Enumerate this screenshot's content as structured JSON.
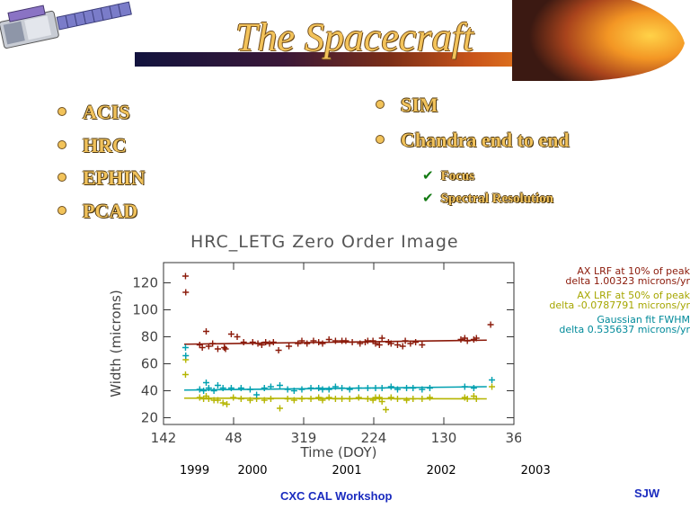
{
  "header": {
    "title": "The Spacecraft"
  },
  "bullets_left": [
    "ACIS",
    "HRC",
    "EPHIN",
    "PCAD"
  ],
  "bullets_right": [
    "SIM",
    "Chandra end to end"
  ],
  "sub_items": [
    "Focus",
    "Spectral Resolution"
  ],
  "footer": {
    "workshop": "CXC CAL Workshop",
    "initials": "SJW"
  },
  "colors": {
    "bullet_text": "#f1c25b",
    "series_10": "#8b1a0a",
    "series_50": "#b5b500",
    "series_gauss": "#00a0b0",
    "footer": "#1a2bbf"
  },
  "chart_data": {
    "type": "scatter",
    "title": "HRC_LETG Zero Order Image",
    "xlabel": "Time (DOY)",
    "ylabel": "Width (microns)",
    "x_tick_labels": [
      "142",
      "48",
      "319",
      "224",
      "130",
      "36"
    ],
    "x_ticks_days": [
      0,
      271,
      542,
      813,
      1084,
      1355
    ],
    "xlim": [
      0,
      1355
    ],
    "year_labels": [
      "1999",
      "2000",
      "2001",
      "2002",
      "2003"
    ],
    "year_label_days": [
      0,
      224,
      589,
      954,
      1319
    ],
    "y_ticks": [
      20,
      40,
      60,
      80,
      100,
      120
    ],
    "ylim": [
      15,
      135
    ],
    "legend": [
      {
        "label": "AX LRF at 10% of peak",
        "fit": "delta 1.00323 microns/yr",
        "color": "#8b1a0a"
      },
      {
        "label": "AX LRF at 50% of peak",
        "fit": "delta -0.0787791 microns/yr",
        "color": "#b5b500"
      },
      {
        "label": "Gaussian fit FWHM",
        "fit": "delta 0.535637 microns/yr",
        "color": "#00a0b0"
      }
    ],
    "series": [
      {
        "name": "AX LRF at 10% of peak",
        "color": "#8b1a0a",
        "fit": [
          [
            80,
            74.5
          ],
          [
            1250,
            77.5
          ]
        ],
        "x": [
          85,
          86,
          140,
          150,
          165,
          175,
          190,
          210,
          235,
          240,
          262,
          285,
          310,
          345,
          365,
          380,
          395,
          410,
          425,
          445,
          485,
          520,
          535,
          555,
          580,
          600,
          615,
          640,
          665,
          690,
          705,
          730,
          760,
          780,
          790,
          810,
          820,
          835,
          845,
          870,
          880,
          905,
          925,
          935,
          955,
          975,
          1000,
          1150,
          1165,
          1175,
          1200,
          1210,
          1265
        ],
        "y": [
          125,
          113,
          74,
          72,
          84,
          73,
          75,
          71,
          72,
          71,
          82,
          80,
          76,
          76,
          75,
          74,
          76,
          75,
          76,
          70,
          73,
          75,
          77,
          75,
          77,
          76,
          75,
          78,
          77,
          77,
          77,
          76,
          75,
          76,
          77,
          77,
          75,
          74,
          79,
          76,
          75,
          74,
          73,
          77,
          75,
          76,
          74,
          78,
          79,
          77,
          78,
          79,
          89
        ]
      },
      {
        "name": "AX LRF at 50% of peak",
        "color": "#b5b500",
        "fit": [
          [
            80,
            34.5
          ],
          [
            1250,
            34.0
          ]
        ],
        "x": [
          85,
          86,
          140,
          155,
          165,
          175,
          195,
          210,
          230,
          245,
          270,
          300,
          335,
          360,
          390,
          415,
          450,
          480,
          505,
          535,
          570,
          600,
          615,
          640,
          665,
          690,
          720,
          755,
          790,
          810,
          820,
          835,
          845,
          860,
          880,
          905,
          940,
          965,
          1000,
          1030,
          1165,
          1175,
          1200,
          1210,
          1270
        ],
        "y": [
          52,
          63,
          35,
          34,
          36,
          34,
          33,
          33,
          31,
          30,
          35,
          34,
          33,
          34,
          33,
          34,
          27,
          34,
          33,
          34,
          34,
          35,
          33,
          35,
          34,
          34,
          34,
          35,
          34,
          33,
          35,
          35,
          32,
          26,
          35,
          34,
          33,
          34,
          34,
          35,
          35,
          34,
          36,
          34,
          43
        ]
      },
      {
        "name": "Gaussian fit FWHM",
        "color": "#00a0b0",
        "fit": [
          [
            80,
            40.5
          ],
          [
            1250,
            43.0
          ]
        ],
        "x": [
          85,
          86,
          140,
          155,
          165,
          175,
          195,
          210,
          230,
          262,
          300,
          335,
          360,
          390,
          415,
          450,
          480,
          505,
          535,
          570,
          600,
          615,
          640,
          665,
          690,
          720,
          755,
          790,
          820,
          845,
          880,
          905,
          940,
          965,
          1000,
          1030,
          1165,
          1200,
          1270
        ],
        "y": [
          72,
          66,
          41,
          40,
          46,
          42,
          40,
          44,
          42,
          42,
          42,
          41,
          37,
          42,
          43,
          44,
          41,
          40,
          41,
          42,
          42,
          41,
          41,
          43,
          42,
          41,
          42,
          42,
          42,
          42,
          43,
          41,
          42,
          42,
          41,
          42,
          43,
          42,
          48
        ]
      }
    ]
  }
}
